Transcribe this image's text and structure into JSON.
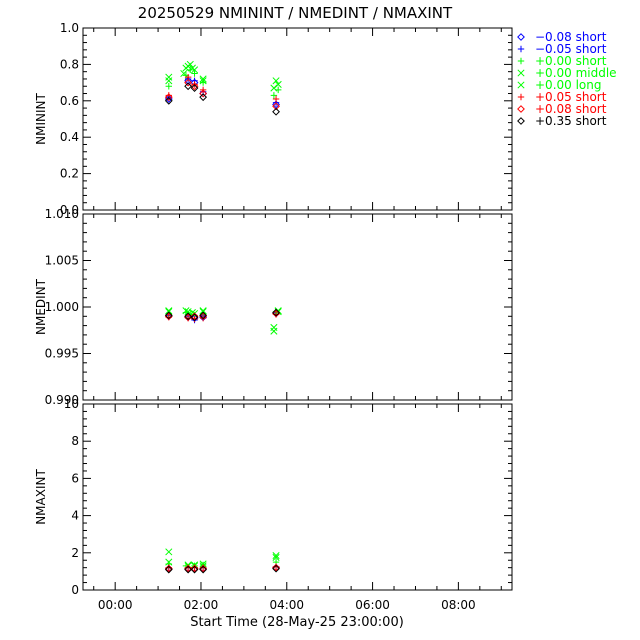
{
  "title": "20250529 NMININT / NMEDINT / NMAXINT",
  "xlabel": "Start Time (28-May-25 23:00:00)",
  "x_ticks": [
    "00:00",
    "02:00",
    "04:00",
    "06:00",
    "08:00"
  ],
  "x_range_hours": [
    -0.75,
    9.25
  ],
  "legend": [
    {
      "label": "−0.08 short",
      "symbol": "diamond",
      "color": "#0000ff"
    },
    {
      "label": "−0.05 short",
      "symbol": "plus",
      "color": "#0000ff"
    },
    {
      "label": "+0.00 short",
      "symbol": "plus",
      "color": "#00ff00"
    },
    {
      "label": "+0.00 middle",
      "symbol": "x",
      "color": "#00ff00"
    },
    {
      "label": "+0.00 long",
      "symbol": "x",
      "color": "#00ff00"
    },
    {
      "label": "+0.05 short",
      "symbol": "plus",
      "color": "#ff0000"
    },
    {
      "label": "+0.08 short",
      "symbol": "diamond",
      "color": "#ff0000"
    },
    {
      "label": "+0.35 short",
      "symbol": "diamond",
      "color": "#000000"
    }
  ],
  "chart_data": [
    {
      "type": "scatter",
      "ylabel": "NMININT",
      "ylim": [
        0.0,
        1.0
      ],
      "yticks": [
        "0.0",
        "0.2",
        "0.4",
        "0.6",
        "0.8",
        "1.0"
      ],
      "series": [
        {
          "name": "−0.08 short",
          "points": [
            [
              1.25,
              0.61
            ],
            [
              1.7,
              0.71
            ],
            [
              1.85,
              0.7
            ],
            [
              2.05,
              0.64
            ],
            [
              3.75,
              0.58
            ]
          ]
        },
        {
          "name": "−0.05 short",
          "points": [
            [
              1.25,
              0.62
            ],
            [
              1.7,
              0.72
            ],
            [
              1.85,
              0.71
            ],
            [
              2.05,
              0.65
            ],
            [
              3.75,
              0.59
            ]
          ]
        },
        {
          "name": "+0.00 short",
          "points": [
            [
              1.25,
              0.68
            ],
            [
              1.65,
              0.74
            ],
            [
              1.75,
              0.77
            ],
            [
              1.85,
              0.75
            ],
            [
              2.05,
              0.7
            ],
            [
              3.7,
              0.63
            ],
            [
              3.8,
              0.66
            ]
          ]
        },
        {
          "name": "+0.00 middle",
          "points": [
            [
              1.25,
              0.71
            ],
            [
              1.65,
              0.78
            ],
            [
              1.75,
              0.8
            ],
            [
              1.85,
              0.77
            ],
            [
              2.05,
              0.72
            ],
            [
              3.7,
              0.67
            ],
            [
              3.8,
              0.69
            ]
          ]
        },
        {
          "name": "+0.00 long",
          "points": [
            [
              1.25,
              0.73
            ],
            [
              1.6,
              0.75
            ],
            [
              1.7,
              0.79
            ],
            [
              1.8,
              0.78
            ],
            [
              2.05,
              0.71
            ],
            [
              3.75,
              0.71
            ]
          ]
        },
        {
          "name": "+0.05 short",
          "points": [
            [
              1.25,
              0.63
            ],
            [
              1.7,
              0.73
            ],
            [
              1.85,
              0.69
            ],
            [
              2.05,
              0.66
            ],
            [
              3.75,
              0.61
            ]
          ]
        },
        {
          "name": "+0.08 short",
          "points": [
            [
              1.25,
              0.62
            ],
            [
              1.7,
              0.7
            ],
            [
              1.85,
              0.68
            ],
            [
              2.05,
              0.64
            ],
            [
              3.75,
              0.57
            ]
          ]
        },
        {
          "name": "+0.35 short",
          "points": [
            [
              1.25,
              0.6
            ],
            [
              1.7,
              0.68
            ],
            [
              1.85,
              0.67
            ],
            [
              2.05,
              0.62
            ],
            [
              3.75,
              0.54
            ]
          ]
        }
      ]
    },
    {
      "type": "scatter",
      "ylabel": "NMEDINT",
      "ylim": [
        0.99,
        1.01
      ],
      "yticks": [
        "0.990",
        "0.995",
        "1.000",
        "1.005",
        "1.010"
      ],
      "series": [
        {
          "name": "−0.08 short",
          "points": [
            [
              1.25,
              0.999
            ],
            [
              1.7,
              0.9989
            ],
            [
              1.85,
              0.9988
            ],
            [
              2.05,
              0.9989
            ],
            [
              3.75,
              0.9993
            ]
          ]
        },
        {
          "name": "−0.05 short",
          "points": [
            [
              1.25,
              0.9991
            ],
            [
              1.7,
              0.999
            ],
            [
              1.85,
              0.9986
            ],
            [
              2.05,
              0.999
            ],
            [
              3.75,
              0.9994
            ]
          ]
        },
        {
          "name": "+0.00 short",
          "points": [
            [
              1.25,
              0.9993
            ],
            [
              1.65,
              0.9994
            ],
            [
              1.75,
              0.9992
            ],
            [
              1.85,
              0.9991
            ],
            [
              2.05,
              0.9993
            ],
            [
              3.75,
              0.9995
            ]
          ]
        },
        {
          "name": "+0.00 middle",
          "points": [
            [
              1.25,
              0.9995
            ],
            [
              1.65,
              0.9996
            ],
            [
              1.8,
              0.9994
            ],
            [
              2.05,
              0.9995
            ],
            [
              3.7,
              0.9978
            ],
            [
              3.8,
              0.9995
            ]
          ]
        },
        {
          "name": "+0.00 long",
          "points": [
            [
              1.25,
              0.9996
            ],
            [
              1.7,
              0.9995
            ],
            [
              1.85,
              0.9993
            ],
            [
              2.05,
              0.9996
            ],
            [
              3.7,
              0.9974
            ],
            [
              3.8,
              0.9996
            ]
          ]
        },
        {
          "name": "+0.05 short",
          "points": [
            [
              1.25,
              0.9989
            ],
            [
              1.7,
              0.9988
            ],
            [
              1.85,
              0.9987
            ],
            [
              2.05,
              0.9988
            ],
            [
              3.75,
              0.9992
            ]
          ]
        },
        {
          "name": "+0.08 short",
          "points": [
            [
              1.25,
              0.999
            ],
            [
              1.7,
              0.9989
            ],
            [
              1.85,
              0.999
            ],
            [
              2.05,
              0.999
            ],
            [
              3.75,
              0.9993
            ]
          ]
        },
        {
          "name": "+0.35 short",
          "points": [
            [
              1.25,
              0.9991
            ],
            [
              1.7,
              0.999
            ],
            [
              1.85,
              0.9989
            ],
            [
              2.05,
              0.9991
            ],
            [
              3.75,
              0.9994
            ]
          ]
        }
      ]
    },
    {
      "type": "scatter",
      "ylabel": "NMAXINT",
      "ylim": [
        0,
        10
      ],
      "yticks": [
        "0",
        "2",
        "4",
        "6",
        "8",
        "10"
      ],
      "series": [
        {
          "name": "−0.08 short",
          "points": [
            [
              1.25,
              1.15
            ],
            [
              1.7,
              1.15
            ],
            [
              1.85,
              1.15
            ],
            [
              2.05,
              1.15
            ],
            [
              3.75,
              1.2
            ]
          ]
        },
        {
          "name": "−0.05 short",
          "points": [
            [
              1.25,
              1.2
            ],
            [
              1.7,
              1.2
            ],
            [
              1.85,
              1.2
            ],
            [
              2.05,
              1.2
            ],
            [
              3.75,
              1.25
            ]
          ]
        },
        {
          "name": "+0.00 short",
          "points": [
            [
              1.25,
              1.4
            ],
            [
              1.65,
              1.3
            ],
            [
              1.85,
              1.3
            ],
            [
              2.05,
              1.35
            ],
            [
              3.75,
              1.5
            ]
          ]
        },
        {
          "name": "+0.00 middle",
          "points": [
            [
              1.25,
              2.05
            ],
            [
              1.7,
              1.35
            ],
            [
              1.85,
              1.3
            ],
            [
              2.05,
              1.4
            ],
            [
              3.75,
              1.85
            ]
          ]
        },
        {
          "name": "+0.00 long",
          "points": [
            [
              1.25,
              1.5
            ],
            [
              1.7,
              1.3
            ],
            [
              1.85,
              1.35
            ],
            [
              2.05,
              1.3
            ],
            [
              3.75,
              1.75
            ]
          ]
        },
        {
          "name": "+0.05 short",
          "points": [
            [
              1.25,
              1.2
            ],
            [
              1.7,
              1.2
            ],
            [
              1.85,
              1.2
            ],
            [
              2.05,
              1.2
            ],
            [
              3.75,
              1.25
            ]
          ]
        },
        {
          "name": "+0.08 short",
          "points": [
            [
              1.25,
              1.15
            ],
            [
              1.7,
              1.15
            ],
            [
              1.85,
              1.15
            ],
            [
              2.05,
              1.15
            ],
            [
              3.75,
              1.2
            ]
          ]
        },
        {
          "name": "+0.35 short",
          "points": [
            [
              1.25,
              1.1
            ],
            [
              1.7,
              1.1
            ],
            [
              1.85,
              1.1
            ],
            [
              2.05,
              1.1
            ],
            [
              3.75,
              1.15
            ]
          ]
        }
      ]
    }
  ]
}
